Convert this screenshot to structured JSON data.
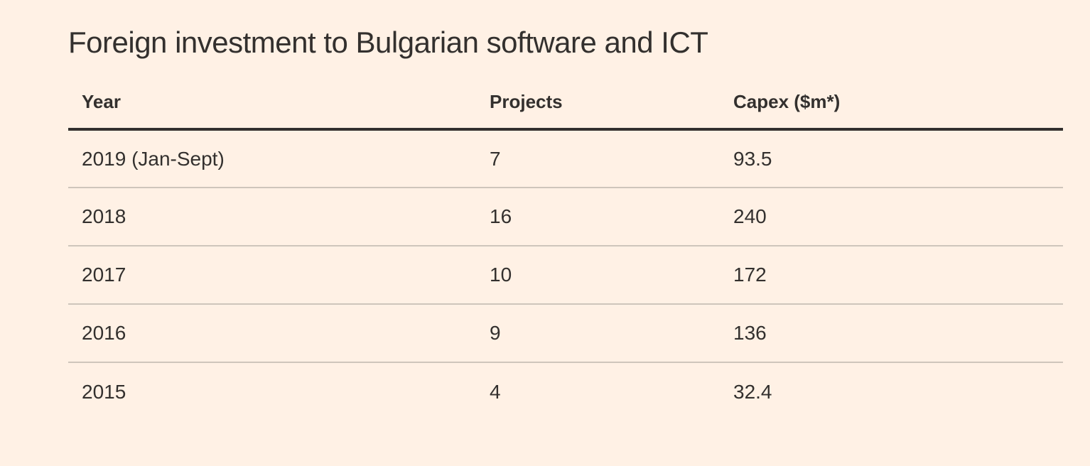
{
  "title": "Foreign investment to Bulgarian software and ICT",
  "colors": {
    "background": "#FFF1E5",
    "text": "#33302E",
    "header_rule": "#33302E",
    "row_divider": "#CEC5BB"
  },
  "table": {
    "columns": [
      "Year",
      "Projects",
      "Capex ($m*)"
    ],
    "rows": [
      {
        "year": "2019 (Jan-Sept)",
        "projects": "7",
        "capex": "93.5"
      },
      {
        "year": "2018",
        "projects": "16",
        "capex": "240"
      },
      {
        "year": "2017",
        "projects": "10",
        "capex": "172"
      },
      {
        "year": "2016",
        "projects": "9",
        "capex": "136"
      },
      {
        "year": "2015",
        "projects": "4",
        "capex": "32.4"
      }
    ]
  },
  "chart_data": {
    "type": "table",
    "title": "Foreign investment to Bulgarian software and ICT",
    "columns": [
      "Year",
      "Projects",
      "Capex ($m*)"
    ],
    "categories": [
      "2019 (Jan-Sept)",
      "2018",
      "2017",
      "2016",
      "2015"
    ],
    "series": [
      {
        "name": "Projects",
        "values": [
          7,
          16,
          10,
          9,
          4
        ]
      },
      {
        "name": "Capex ($m*)",
        "values": [
          93.5,
          240,
          172,
          136,
          32.4
        ]
      }
    ]
  }
}
